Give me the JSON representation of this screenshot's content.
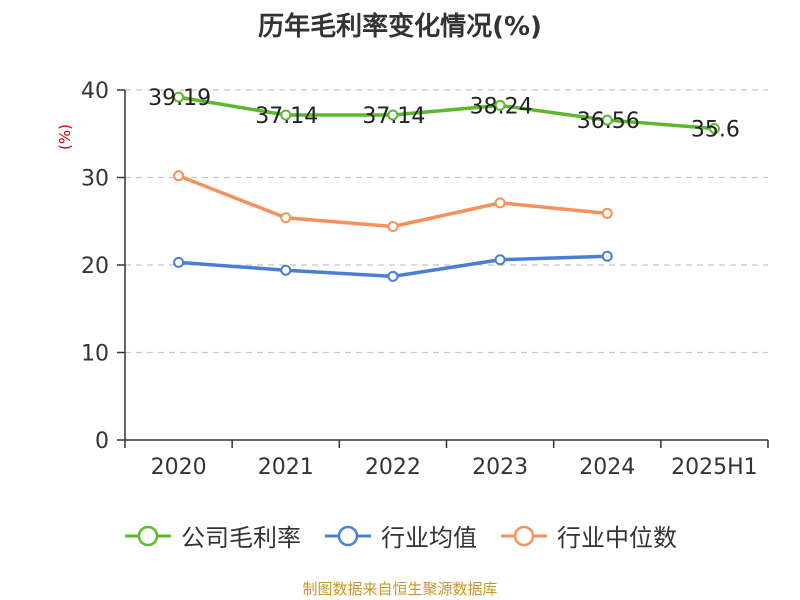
{
  "chart_data": {
    "type": "line",
    "title": "历年毛利率变化情况(%)",
    "ylabel": "(%)",
    "xlabel": "",
    "categories": [
      "2020",
      "2021",
      "2022",
      "2023",
      "2024",
      "2025H1"
    ],
    "ylim": [
      0,
      40
    ],
    "yticks": [
      0,
      10,
      20,
      30,
      40
    ],
    "grid": true,
    "legend_position": "bottom",
    "series": [
      {
        "name": "公司毛利率",
        "color": "#5cb82e",
        "values": [
          39.19,
          37.14,
          37.14,
          38.24,
          36.56,
          35.6
        ],
        "labels": [
          "39.19",
          "37.14",
          "37.14",
          "38.24",
          "36.56",
          "35.6"
        ]
      },
      {
        "name": "行业均值",
        "color": "#4a7fd4",
        "values": [
          20.3,
          19.4,
          18.7,
          20.6,
          21.0,
          null
        ]
      },
      {
        "name": "行业中位数",
        "color": "#f5915a",
        "values": [
          30.2,
          25.4,
          24.4,
          27.1,
          25.9,
          null
        ]
      }
    ]
  },
  "source": "制图数据来自恒生聚源数据库"
}
